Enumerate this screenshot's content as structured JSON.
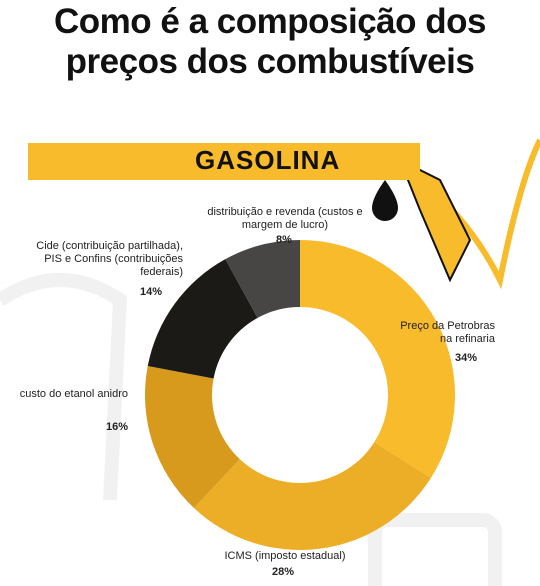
{
  "chart_data": {
    "type": "donut",
    "title": "Como é a composição dos preços dos combustíveis",
    "subtitle": "GASOLINA",
    "categories": [
      "Preço da Petrobras na refinaria",
      "ICMS (imposto estadual)",
      "custo do etanol anidro",
      "Cide (contribuição partilhada), PIS e Confins (contribuições federais)",
      "distribuição e revenda (custos e margem de lucro)"
    ],
    "values": [
      34,
      28,
      16,
      14,
      8
    ],
    "value_labels": [
      "34%",
      "28%",
      "16%",
      "14%",
      "8%"
    ],
    "colors": [
      "#f8bb2b",
      "#ecae27",
      "#d89a1d",
      "#1c1a17",
      "#484644"
    ]
  }
}
